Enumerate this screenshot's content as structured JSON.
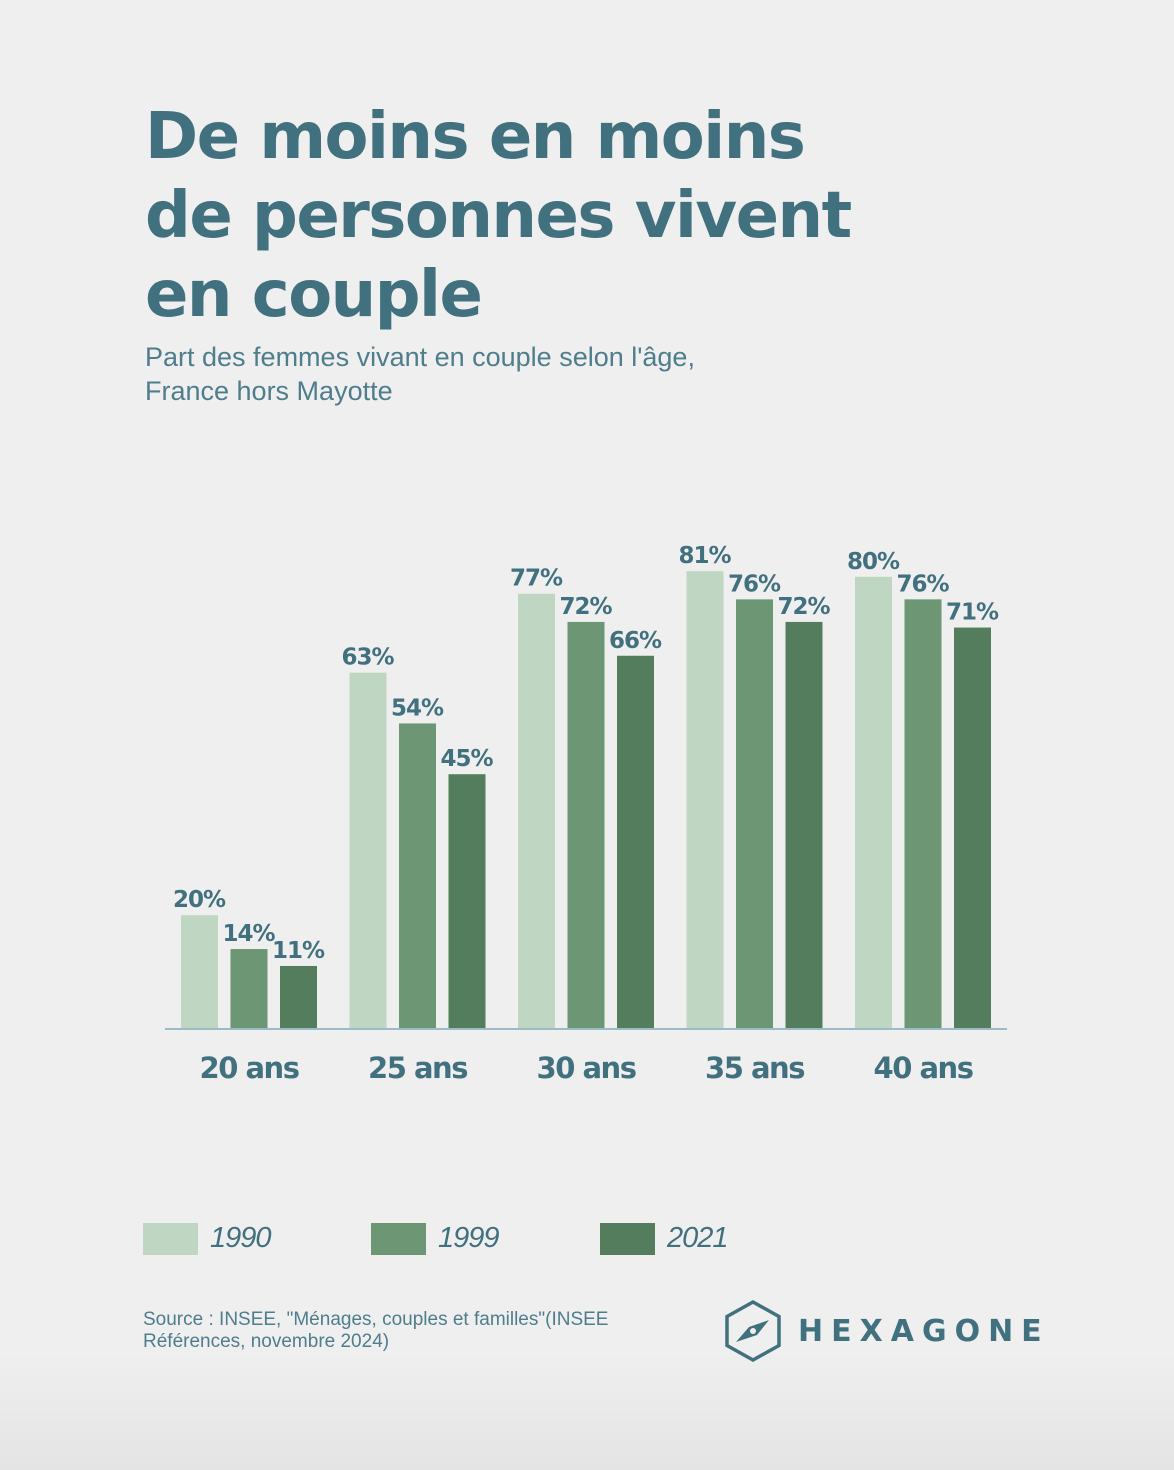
{
  "title_lines": [
    "De moins en moins",
    "de personnes vivent",
    "en couple"
  ],
  "subtitle_lines": [
    "Part des femmes vivant en couple selon l'âge,",
    "France hors Mayotte"
  ],
  "source_lines": [
    "Source : INSEE, \"Ménages, couples et familles\"(INSEE",
    "Références, novembre 2024)"
  ],
  "logo": {
    "text": "HEXAGONE",
    "icon": "hexagon-compass-icon"
  },
  "colors": {
    "text": "#41707f",
    "axis": "#9cbcc8",
    "series": [
      "#bfd7c2",
      "#6d9674",
      "#537d5d"
    ]
  },
  "chart_data": {
    "type": "bar",
    "title": "De moins en moins de personnes vivent en couple",
    "subtitle": "Part des femmes vivant en couple selon l'âge, France hors Mayotte",
    "xlabel": "",
    "ylabel": "",
    "ylim": [
      0,
      100
    ],
    "grid": false,
    "legend_position": "bottom-left",
    "categories": [
      "20 ans",
      "25 ans",
      "30 ans",
      "35 ans",
      "40 ans"
    ],
    "series": [
      {
        "name": "1990",
        "values": [
          20,
          63,
          77,
          81,
          80
        ]
      },
      {
        "name": "1999",
        "values": [
          14,
          54,
          72,
          76,
          76
        ]
      },
      {
        "name": "2021",
        "values": [
          11,
          45,
          66,
          72,
          71
        ]
      }
    ],
    "value_suffix": "%"
  }
}
